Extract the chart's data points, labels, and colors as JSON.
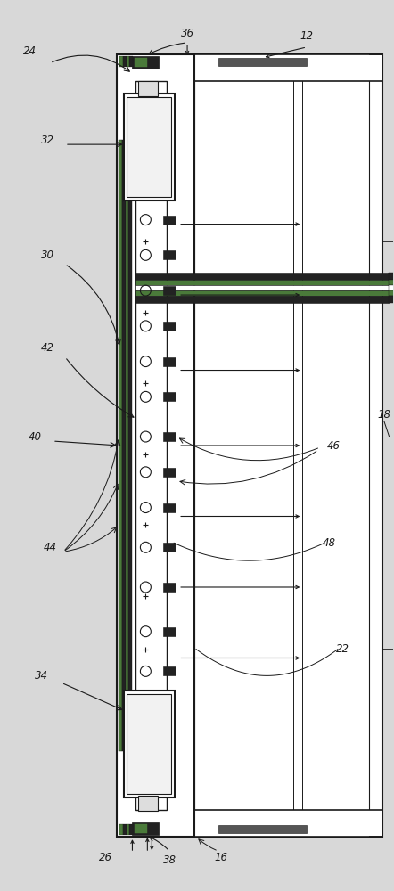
{
  "bg_color": "#d8d8d8",
  "lc": "#1a1a1a",
  "white": "#ffffff",
  "green1": "#4a7a3a",
  "green2": "#5a9a4a",
  "dark": "#222222",
  "med_gray": "#888888",
  "light_gray": "#cccccc",
  "figsize": [
    4.42,
    10.0
  ],
  "dpi": 100
}
